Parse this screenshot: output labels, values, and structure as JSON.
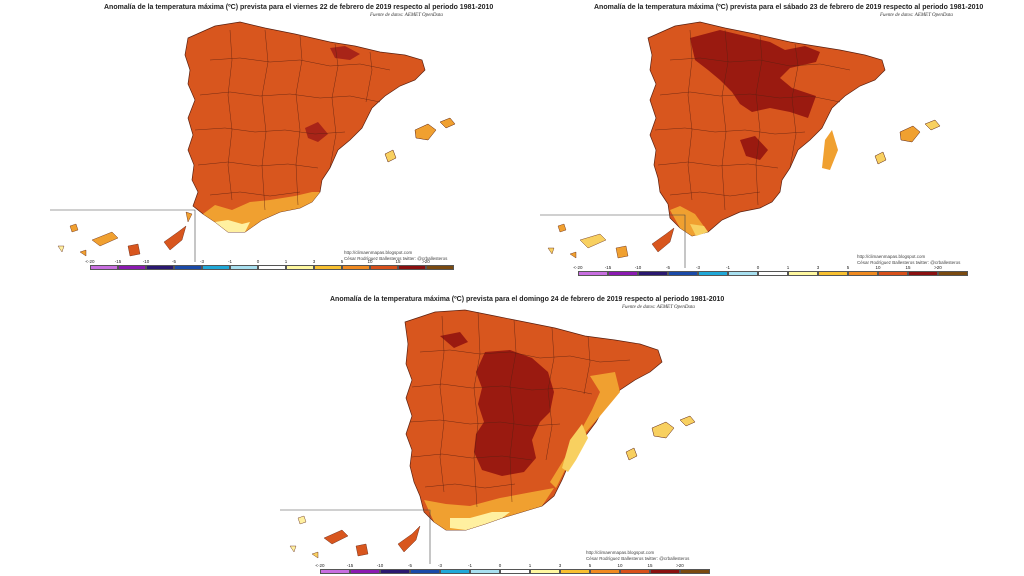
{
  "panels": [
    {
      "title": "Anomalía de la temperatura máxima (ºC) prevista para el viernes 22 de febrero de 2019 respecto al periodo 1981-2010",
      "source": "Fuente de datos: AEMET OpenData",
      "credit_url": "http://climaenmapas.blogspot.com",
      "credit_author": "César Rodríguez Ballesteros  twitter: @crballesteros"
    },
    {
      "title": "Anomalía de la temperatura máxima (ºC) prevista para el sábado 23 de febrero de 2019 respecto al periodo 1981-2010",
      "source": "Fuente de datos: AEMET OpenData",
      "credit_url": "http://climaenmapas.blogspot.com",
      "credit_author": "César Rodríguez Ballesteros  twitter: @crballesteros"
    },
    {
      "title": "Anomalía de la temperatura máxima (ºC) prevista para el domingo 24 de febrero de 2019 respecto al periodo 1981-2010",
      "source": "Fuente de datos: AEMET OpenData",
      "credit_url": "http://climaenmapas.blogspot.com",
      "credit_author": "César Rodríguez Ballesteros  twitter: @crballesteros"
    }
  ],
  "legend": {
    "ticks": [
      "<-20",
      "-15",
      "-10",
      "-5",
      "-3",
      "-1",
      "0",
      "1",
      "3",
      "5",
      "10",
      "15",
      ">20"
    ],
    "colors": [
      "#c86ee0",
      "#8a1ab0",
      "#2a1870",
      "#1a4aa8",
      "#20a8d8",
      "#a8e0f0",
      "#ffffff",
      "#fff8a0",
      "#f8c030",
      "#f08a20",
      "#d8501a",
      "#8a1010",
      "#7a4a10"
    ]
  },
  "colors": {
    "base": "#d8561e",
    "hot": "#9a1a10",
    "warm": "#f0a030",
    "mild": "#f8d060",
    "pale": "#fff0a0"
  }
}
